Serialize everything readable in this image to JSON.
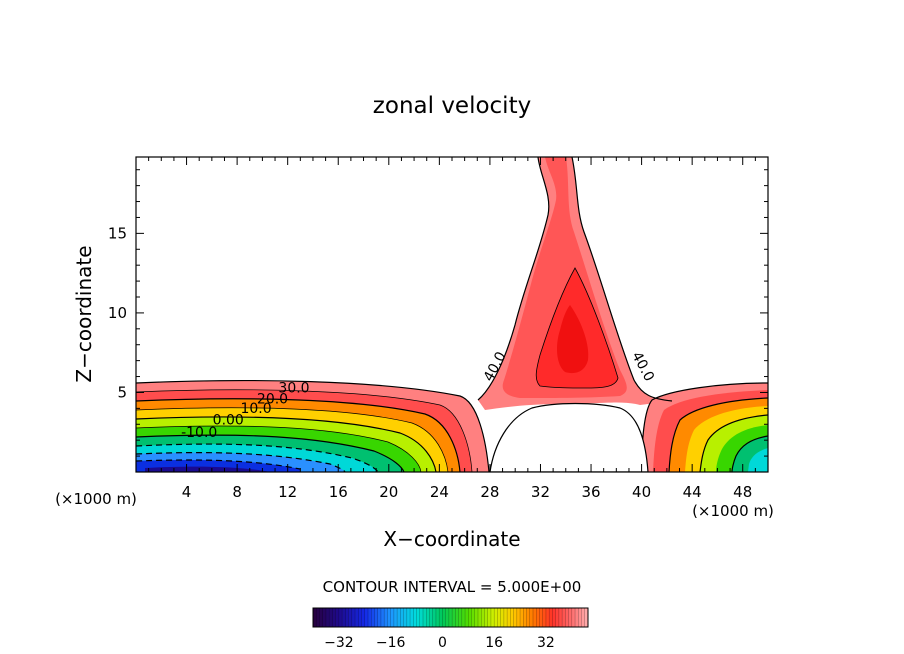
{
  "chart_data": {
    "type": "heatmap",
    "title": "zonal velocity",
    "xlabel": "X−coordinate",
    "ylabel": "Z−coordinate",
    "x_unit": "(×1000 m)",
    "y_unit": "(×1000 m)",
    "xlim": [
      0,
      50
    ],
    "ylim": [
      0,
      19.8
    ],
    "x_ticks": [
      4,
      8,
      12,
      16,
      20,
      24,
      28,
      32,
      36,
      40,
      44,
      48
    ],
    "y_ticks": [
      5,
      10,
      15
    ],
    "contour_interval_label": "CONTOUR INTERVAL = 5.000E+00",
    "contour_labels": [
      {
        "text": "30.0",
        "x": 12.5,
        "y": 5.0
      },
      {
        "text": "20.0",
        "x": 10.8,
        "y": 4.3
      },
      {
        "text": "10.0",
        "x": 9.5,
        "y": 3.7
      },
      {
        "text": "0.00",
        "x": 7.3,
        "y": 3.0
      },
      {
        "text": "-10.0",
        "x": 5.0,
        "y": 2.2
      },
      {
        "text": "40.0",
        "x": 28.7,
        "y": 6.5
      },
      {
        "text": "40.0",
        "x": 39.8,
        "y": 6.5
      }
    ],
    "colorbar": {
      "range": [
        -40,
        45
      ],
      "ticks": [
        -32,
        -16,
        0,
        16,
        32
      ],
      "tick_labels": [
        "−32",
        "−16",
        "0",
        "16",
        "32"
      ]
    },
    "grid": false,
    "legend": "colorbar-bottom"
  }
}
